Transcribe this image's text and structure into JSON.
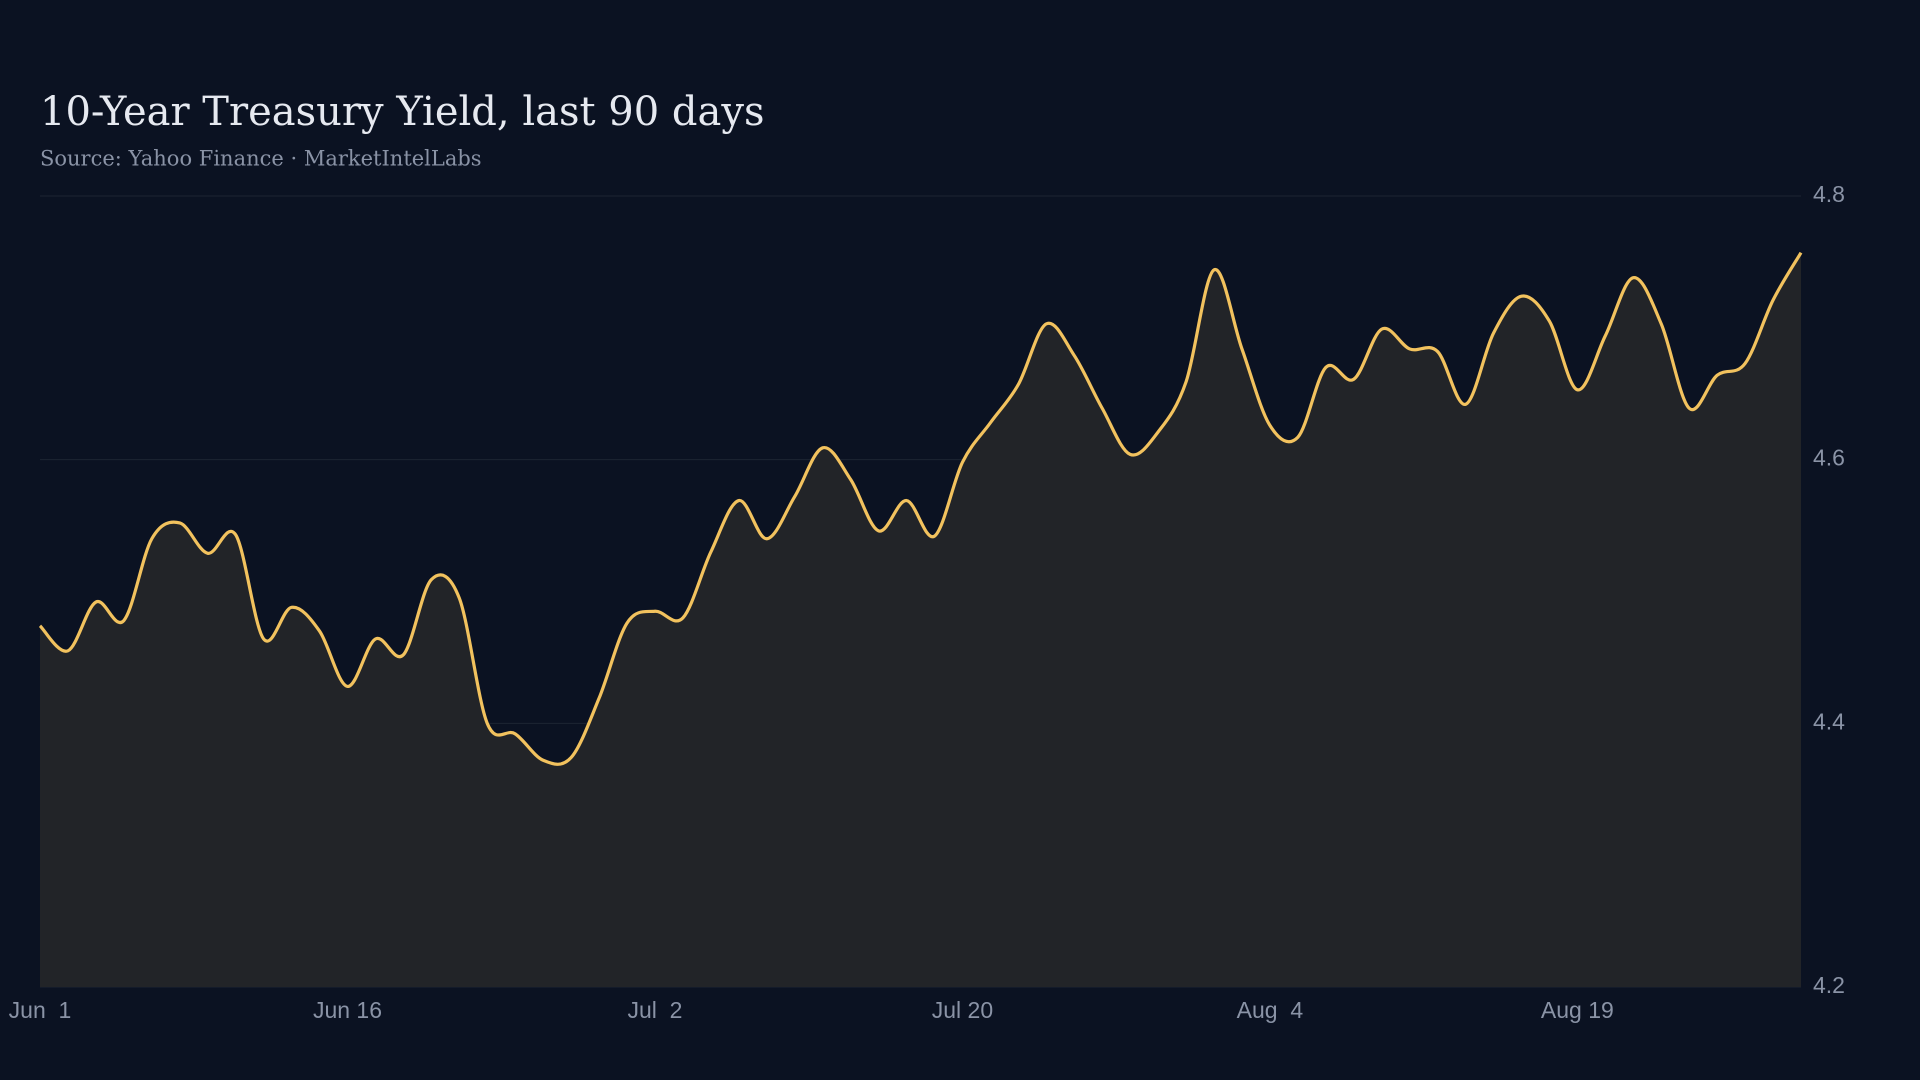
{
  "chart_data": {
    "type": "line",
    "title": "10-Year Treasury Yield, last 90 days",
    "subtitle": "Source: Yahoo Finance · MarketIntelLabs",
    "categories": [
      "Jun  1",
      null,
      null,
      null,
      null,
      null,
      null,
      null,
      null,
      null,
      null,
      "Jun 16",
      null,
      null,
      null,
      null,
      null,
      null,
      null,
      null,
      null,
      null,
      "Jul  2",
      null,
      null,
      null,
      null,
      null,
      null,
      null,
      null,
      null,
      null,
      "Jul 20",
      null,
      null,
      null,
      null,
      null,
      null,
      null,
      null,
      null,
      null,
      "Aug  4",
      null,
      null,
      null,
      null,
      null,
      null,
      null,
      null,
      null,
      null,
      "Aug 19",
      null,
      null,
      null,
      null,
      null,
      null,
      null,
      null
    ],
    "series": [
      {
        "name": "10-Year Treasury Yield",
        "color": "#f2c25e",
        "values": [
          4.474,
          4.455,
          4.492,
          4.478,
          4.54,
          4.552,
          4.529,
          4.543,
          4.464,
          4.488,
          4.47,
          4.428,
          4.464,
          4.452,
          4.509,
          4.495,
          4.4,
          4.392,
          4.372,
          4.374,
          4.419,
          4.476,
          4.485,
          4.48,
          4.53,
          4.569,
          4.54,
          4.572,
          4.609,
          4.585,
          4.546,
          4.569,
          4.542,
          4.598,
          4.628,
          4.657,
          4.703,
          4.679,
          4.639,
          4.604,
          4.621,
          4.659,
          4.744,
          4.684,
          4.626,
          4.617,
          4.67,
          4.661,
          4.699,
          4.684,
          4.682,
          4.642,
          4.696,
          4.724,
          4.705,
          4.653,
          4.694,
          4.738,
          4.703,
          4.639,
          4.664,
          4.673,
          4.721,
          4.757
        ]
      }
    ],
    "ylim": [
      4.2,
      4.8
    ],
    "yticks": [
      4.2,
      4.4,
      4.6,
      4.8
    ],
    "grid": true,
    "area": true
  }
}
